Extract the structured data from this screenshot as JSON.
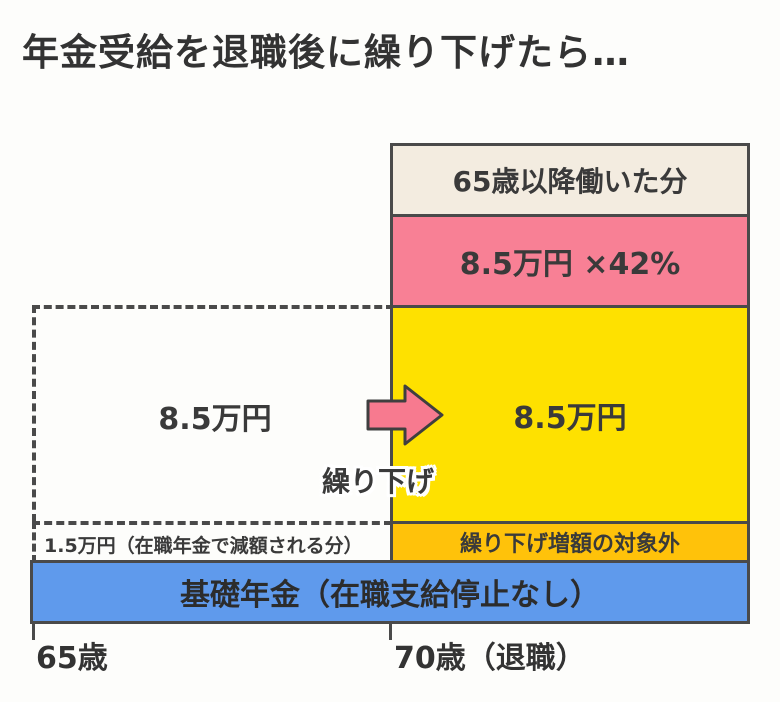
{
  "title": "年金受給を退職後に繰り下げたら…",
  "boxes": {
    "work_after_65": "65歳以降働いた分",
    "increase": "8.5万円 ×42%",
    "deferred": "8.5万円",
    "excluded": "繰り下げ増額の対象外",
    "basic_pension": "基礎年金（在職支給停止なし）"
  },
  "left": {
    "amount": "8.5万円",
    "reduced": "1.5万円（在職年金で減額される分）"
  },
  "arrow_label": "繰り下げ",
  "axis": {
    "age_start": "65歳",
    "age_end": "70歳（退職）"
  },
  "colors": {
    "beige": "#f3ece0",
    "pink": "#f88095",
    "yellow": "#fee100",
    "orange": "#ffc20a",
    "blue": "#5f9aec"
  }
}
